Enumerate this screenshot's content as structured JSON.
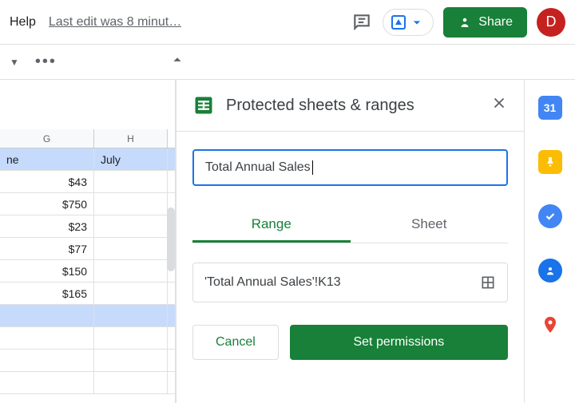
{
  "topbar": {
    "help_label": "Help",
    "last_edit": "Last edit was 8 minut…",
    "share_label": "Share",
    "avatar_letter": "D",
    "avatar_bg": "#c5221f"
  },
  "sheet": {
    "columns": [
      {
        "letter": "G"
      },
      {
        "letter": "H"
      }
    ],
    "rows": [
      {
        "g": "ne",
        "h": "July",
        "highlight": true,
        "g_align": "left"
      },
      {
        "g": "$43",
        "h": ""
      },
      {
        "g": "$750",
        "h": ""
      },
      {
        "g": "$23",
        "h": ""
      },
      {
        "g": "$77",
        "h": ""
      },
      {
        "g": "$150",
        "h": ""
      },
      {
        "g": "$165",
        "h": ""
      },
      {
        "g": "",
        "h": "",
        "highlight": true
      },
      {
        "g": "",
        "h": ""
      },
      {
        "g": "",
        "h": ""
      },
      {
        "g": "",
        "h": ""
      }
    ]
  },
  "panel": {
    "title": "Protected sheets & ranges",
    "description_value": "Total Annual Sales",
    "tabs": {
      "range": "Range",
      "sheet": "Sheet",
      "active": "range"
    },
    "range_ref": "'Total Annual Sales'!K13",
    "cancel_label": "Cancel",
    "set_label": "Set permissions"
  },
  "colors": {
    "accent_green": "#188038",
    "accent_blue": "#1a73e8",
    "highlight": "#c6dafc"
  }
}
